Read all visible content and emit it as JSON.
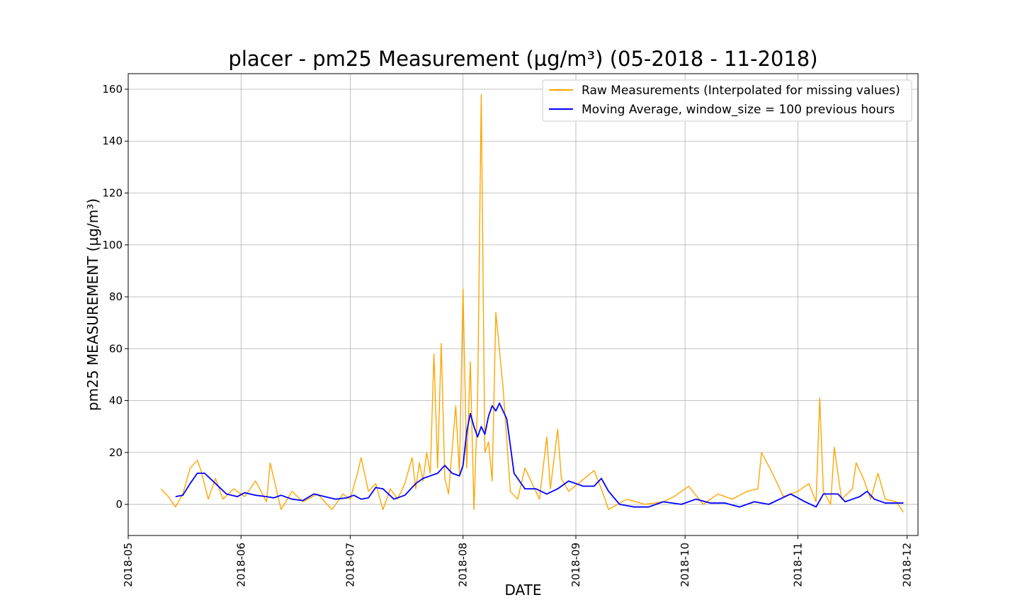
{
  "chart_data": {
    "type": "line",
    "title": "placer - pm25 Measurement (µg/m³) (05-2018 - 11-2018)",
    "xlabel": "DATE",
    "ylabel": "pm25 MEASUREMENT (µg/m³)",
    "xlim": [
      "2018-05-01",
      "2018-12-04"
    ],
    "ylim": [
      -12,
      166
    ],
    "grid": true,
    "legend_position": "top-right",
    "x_ticks": [
      "2018-05",
      "2018-06",
      "2018-07",
      "2018-08",
      "2018-09",
      "2018-10",
      "2018-11",
      "2018-12"
    ],
    "x_tick_dates": [
      "2018-05-01",
      "2018-06-01",
      "2018-07-01",
      "2018-08-01",
      "2018-09-01",
      "2018-10-01",
      "2018-11-01",
      "2018-12-01"
    ],
    "y_ticks": [
      0,
      20,
      40,
      60,
      80,
      100,
      120,
      140,
      160
    ],
    "series": [
      {
        "name": "Raw Measurements (Interpolated for missing values)",
        "color": "#ffa500",
        "x": [
          "2018-05-10",
          "2018-05-12",
          "2018-05-14",
          "2018-05-16",
          "2018-05-18",
          "2018-05-20",
          "2018-05-21",
          "2018-05-23",
          "2018-05-25",
          "2018-05-27",
          "2018-05-30",
          "2018-06-02",
          "2018-06-05",
          "2018-06-08",
          "2018-06-09",
          "2018-06-12",
          "2018-06-15",
          "2018-06-18",
          "2018-06-22",
          "2018-06-26",
          "2018-06-29",
          "2018-07-01",
          "2018-07-03",
          "2018-07-04",
          "2018-07-06",
          "2018-07-08",
          "2018-07-10",
          "2018-07-12",
          "2018-07-14",
          "2018-07-16",
          "2018-07-18",
          "2018-07-19",
          "2018-07-20",
          "2018-07-21",
          "2018-07-22",
          "2018-07-23",
          "2018-07-24",
          "2018-07-25",
          "2018-07-26",
          "2018-07-27",
          "2018-07-28",
          "2018-07-29",
          "2018-07-30",
          "2018-07-31",
          "2018-08-01",
          "2018-08-02",
          "2018-08-03",
          "2018-08-04",
          "2018-08-05",
          "2018-08-06",
          "2018-08-07",
          "2018-08-08",
          "2018-08-09",
          "2018-08-10",
          "2018-08-12",
          "2018-08-14",
          "2018-08-16",
          "2018-08-18",
          "2018-08-20",
          "2018-08-22",
          "2018-08-24",
          "2018-08-25",
          "2018-08-27",
          "2018-08-28",
          "2018-08-30",
          "2018-09-06",
          "2018-09-08",
          "2018-09-10",
          "2018-09-15",
          "2018-09-20",
          "2018-09-25",
          "2018-09-28",
          "2018-10-02",
          "2018-10-06",
          "2018-10-10",
          "2018-10-14",
          "2018-10-18",
          "2018-10-21",
          "2018-10-22",
          "2018-10-25",
          "2018-10-28",
          "2018-11-01",
          "2018-11-04",
          "2018-11-06",
          "2018-11-07",
          "2018-11-08",
          "2018-11-10",
          "2018-11-11",
          "2018-11-13",
          "2018-11-16",
          "2018-11-17",
          "2018-11-19",
          "2018-11-21",
          "2018-11-23",
          "2018-11-25",
          "2018-11-28",
          "2018-11-30"
        ],
        "values": [
          6,
          3,
          -1,
          4,
          14,
          17,
          13,
          2,
          10,
          2,
          6,
          3,
          9,
          1,
          16,
          -2,
          5,
          1,
          4,
          -2,
          4,
          2,
          12,
          18,
          5,
          8,
          -2,
          6,
          2,
          8,
          18,
          6,
          16,
          9,
          20,
          12,
          58,
          14,
          62,
          10,
          4,
          21,
          38,
          12,
          83,
          14,
          55,
          -2,
          40,
          158,
          20,
          24,
          9,
          74,
          45,
          5,
          2,
          14,
          8,
          2,
          26,
          6,
          29,
          10,
          5,
          13,
          6,
          -2,
          2,
          0,
          1,
          3,
          7,
          0,
          4,
          2,
          5,
          6,
          20,
          12,
          3,
          5,
          8,
          1,
          41,
          5,
          0,
          22,
          2,
          6,
          16,
          10,
          2,
          12,
          2,
          1,
          -3
        ]
      },
      {
        "name": "Moving Average, window_size = 100 previous hours",
        "color": "#0000ff",
        "x": [
          "2018-05-14",
          "2018-05-16",
          "2018-05-18",
          "2018-05-20",
          "2018-05-22",
          "2018-05-25",
          "2018-05-28",
          "2018-05-31",
          "2018-06-02",
          "2018-06-05",
          "2018-06-08",
          "2018-06-10",
          "2018-06-12",
          "2018-06-15",
          "2018-06-18",
          "2018-06-21",
          "2018-06-24",
          "2018-06-27",
          "2018-06-30",
          "2018-07-02",
          "2018-07-04",
          "2018-07-06",
          "2018-07-08",
          "2018-07-10",
          "2018-07-13",
          "2018-07-16",
          "2018-07-19",
          "2018-07-21",
          "2018-07-23",
          "2018-07-25",
          "2018-07-27",
          "2018-07-29",
          "2018-07-31",
          "2018-08-01",
          "2018-08-02",
          "2018-08-03",
          "2018-08-04",
          "2018-08-05",
          "2018-08-06",
          "2018-08-07",
          "2018-08-08",
          "2018-08-09",
          "2018-08-10",
          "2018-08-11",
          "2018-08-13",
          "2018-08-15",
          "2018-08-18",
          "2018-08-21",
          "2018-08-24",
          "2018-08-27",
          "2018-08-30",
          "2018-09-01",
          "2018-09-03",
          "2018-09-06",
          "2018-09-08",
          "2018-09-10",
          "2018-09-13",
          "2018-09-17",
          "2018-09-21",
          "2018-09-25",
          "2018-09-30",
          "2018-10-04",
          "2018-10-08",
          "2018-10-12",
          "2018-10-16",
          "2018-10-20",
          "2018-10-24",
          "2018-10-27",
          "2018-10-30",
          "2018-11-03",
          "2018-11-06",
          "2018-11-08",
          "2018-11-10",
          "2018-11-12",
          "2018-11-14",
          "2018-11-16",
          "2018-11-18",
          "2018-11-20",
          "2018-11-22",
          "2018-11-25",
          "2018-11-30"
        ],
        "values": [
          3,
          3.5,
          8,
          12,
          12,
          8,
          4,
          3,
          4.5,
          3.5,
          3,
          2.5,
          3.5,
          2,
          1.5,
          4,
          3,
          2,
          2.5,
          3.5,
          2,
          2.5,
          6.5,
          6,
          2,
          3.5,
          8,
          10,
          11,
          12,
          15,
          12,
          11,
          15,
          28,
          35,
          30,
          26,
          30,
          27,
          34,
          38,
          36,
          39,
          33,
          12,
          6,
          6,
          4,
          6,
          9,
          8,
          7,
          7,
          10,
          5,
          0,
          -1,
          -1,
          1,
          0,
          2,
          0.5,
          0.5,
          -1,
          1,
          0,
          2,
          4,
          1,
          -1,
          4,
          4,
          4,
          1,
          2,
          3,
          5,
          2,
          0.5,
          0.5
        ]
      }
    ]
  }
}
